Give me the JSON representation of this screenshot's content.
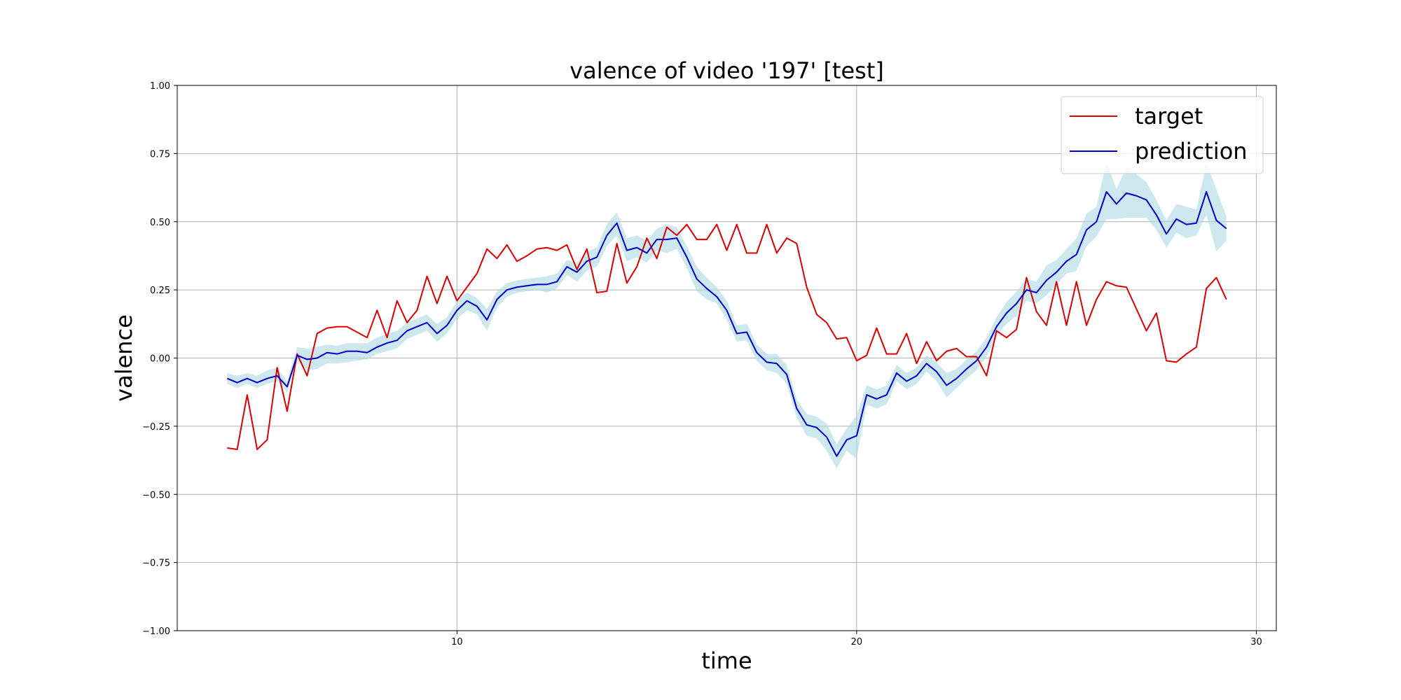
{
  "chart_data": {
    "type": "line",
    "title": "valence of video '197' [test]",
    "xlabel": "time",
    "ylabel": "valence",
    "xlim": [
      3.0,
      30.5
    ],
    "ylim": [
      -1.0,
      1.0
    ],
    "xticks": [
      10,
      20,
      30
    ],
    "yticks": [
      -1.0,
      -0.75,
      -0.5,
      -0.25,
      0.0,
      0.25,
      0.5,
      0.75,
      1.0
    ],
    "ytick_labels": [
      "−1.00",
      "−0.75",
      "−0.50",
      "−0.25",
      "0.00",
      "0.25",
      "0.50",
      "0.75",
      "1.00"
    ],
    "xtick_labels": [
      "10",
      "20",
      "30"
    ],
    "grid": true,
    "legend_position": "top-right",
    "colors": {
      "target": "#dd0000",
      "prediction": "#0000cc",
      "band": "#add8e6"
    },
    "series": [
      {
        "name": "target",
        "x": [
          4.25,
          4.5,
          4.75,
          5.0,
          5.25,
          5.5,
          5.75,
          6.0,
          6.25,
          6.5,
          6.75,
          7.0,
          7.25,
          7.5,
          7.75,
          8.0,
          8.25,
          8.5,
          8.75,
          9.0,
          9.25,
          9.5,
          9.75,
          10.0,
          10.25,
          10.5,
          10.75,
          11.0,
          11.25,
          11.5,
          11.75,
          12.0,
          12.25,
          12.5,
          12.75,
          13.0,
          13.25,
          13.5,
          13.75,
          14.0,
          14.25,
          14.5,
          14.75,
          15.0,
          15.25,
          15.5,
          15.75,
          16.0,
          16.25,
          16.5,
          16.75,
          17.0,
          17.25,
          17.5,
          17.75,
          18.0,
          18.25,
          18.5,
          18.75,
          19.0,
          19.25,
          19.5,
          19.75,
          20.0,
          20.25,
          20.5,
          20.75,
          21.0,
          21.25,
          21.5,
          21.75,
          22.0,
          22.25,
          22.5,
          22.75,
          23.0,
          23.25,
          23.5,
          23.75,
          24.0,
          24.25,
          24.5,
          24.75,
          25.0,
          25.25,
          25.5,
          25.75,
          26.0,
          26.25,
          26.5,
          26.75,
          27.0,
          27.25,
          27.5,
          27.75,
          28.0,
          28.25,
          28.5,
          28.75,
          29.0,
          29.25
        ],
        "values": [
          -0.33,
          -0.335,
          -0.135,
          -0.335,
          -0.3,
          -0.035,
          -0.195,
          0.015,
          -0.065,
          0.09,
          0.11,
          0.115,
          0.115,
          0.095,
          0.075,
          0.175,
          0.075,
          0.21,
          0.13,
          0.175,
          0.3,
          0.2,
          0.3,
          0.21,
          0.26,
          0.31,
          0.4,
          0.365,
          0.415,
          0.355,
          0.375,
          0.4,
          0.405,
          0.395,
          0.415,
          0.325,
          0.4,
          0.24,
          0.245,
          0.42,
          0.275,
          0.335,
          0.44,
          0.365,
          0.48,
          0.45,
          0.49,
          0.435,
          0.435,
          0.49,
          0.395,
          0.49,
          0.385,
          0.385,
          0.49,
          0.385,
          0.44,
          0.42,
          0.26,
          0.16,
          0.13,
          0.07,
          0.075,
          -0.01,
          0.01,
          0.11,
          0.015,
          0.015,
          0.09,
          -0.02,
          0.06,
          -0.01,
          0.025,
          0.035,
          0.005,
          0.005,
          -0.065,
          0.1,
          0.075,
          0.105,
          0.295,
          0.17,
          0.12,
          0.28,
          0.12,
          0.28,
          0.12,
          0.215,
          0.28,
          0.265,
          0.26,
          0.18,
          0.1,
          0.165,
          -0.01,
          -0.015,
          0.015,
          0.04,
          0.255,
          0.295,
          0.215
        ]
      },
      {
        "name": "prediction",
        "x": [
          4.25,
          4.5,
          4.75,
          5.0,
          5.25,
          5.5,
          5.75,
          6.0,
          6.25,
          6.5,
          6.75,
          7.0,
          7.25,
          7.5,
          7.75,
          8.0,
          8.25,
          8.5,
          8.75,
          9.0,
          9.25,
          9.5,
          9.75,
          10.0,
          10.25,
          10.5,
          10.75,
          11.0,
          11.25,
          11.5,
          11.75,
          12.0,
          12.25,
          12.5,
          12.75,
          13.0,
          13.25,
          13.5,
          13.75,
          14.0,
          14.25,
          14.5,
          14.75,
          15.0,
          15.25,
          15.5,
          15.75,
          16.0,
          16.25,
          16.5,
          16.75,
          17.0,
          17.25,
          17.5,
          17.75,
          18.0,
          18.25,
          18.5,
          18.75,
          19.0,
          19.25,
          19.5,
          19.75,
          20.0,
          20.25,
          20.5,
          20.75,
          21.0,
          21.25,
          21.5,
          21.75,
          22.0,
          22.25,
          22.5,
          22.75,
          23.0,
          23.25,
          23.5,
          23.75,
          24.0,
          24.25,
          24.5,
          24.75,
          25.0,
          25.25,
          25.5,
          25.75,
          26.0,
          26.25,
          26.5,
          26.75,
          27.0,
          27.25,
          27.5,
          27.75,
          28.0,
          28.25,
          28.5,
          28.75,
          29.0,
          29.25
        ],
        "values": [
          -0.075,
          -0.09,
          -0.075,
          -0.09,
          -0.075,
          -0.065,
          -0.105,
          0.01,
          -0.005,
          0.0,
          0.02,
          0.015,
          0.025,
          0.025,
          0.02,
          0.04,
          0.055,
          0.065,
          0.1,
          0.115,
          0.13,
          0.09,
          0.12,
          0.175,
          0.21,
          0.19,
          0.14,
          0.215,
          0.25,
          0.26,
          0.265,
          0.27,
          0.27,
          0.28,
          0.335,
          0.315,
          0.355,
          0.37,
          0.45,
          0.495,
          0.395,
          0.405,
          0.385,
          0.435,
          0.435,
          0.44,
          0.37,
          0.29,
          0.255,
          0.225,
          0.175,
          0.09,
          0.095,
          0.02,
          -0.015,
          -0.02,
          -0.06,
          -0.185,
          -0.245,
          -0.255,
          -0.29,
          -0.36,
          -0.3,
          -0.285,
          -0.135,
          -0.15,
          -0.135,
          -0.055,
          -0.085,
          -0.065,
          -0.02,
          -0.05,
          -0.1,
          -0.075,
          -0.04,
          -0.01,
          0.04,
          0.115,
          0.165,
          0.2,
          0.25,
          0.24,
          0.285,
          0.315,
          0.355,
          0.38,
          0.47,
          0.5,
          0.61,
          0.565,
          0.605,
          0.595,
          0.58,
          0.525,
          0.455,
          0.51,
          0.49,
          0.495,
          0.61,
          0.505,
          0.475
        ],
        "band_lower": [
          -0.095,
          -0.11,
          -0.095,
          -0.11,
          -0.095,
          -0.085,
          -0.125,
          -0.01,
          -0.045,
          -0.04,
          -0.02,
          -0.02,
          -0.015,
          -0.01,
          -0.005,
          0.015,
          0.025,
          0.035,
          0.07,
          0.085,
          0.1,
          0.06,
          0.09,
          0.145,
          0.175,
          0.16,
          0.1,
          0.185,
          0.225,
          0.24,
          0.245,
          0.25,
          0.24,
          0.255,
          0.305,
          0.28,
          0.32,
          0.335,
          0.41,
          0.45,
          0.355,
          0.37,
          0.35,
          0.395,
          0.385,
          0.4,
          0.33,
          0.245,
          0.215,
          0.2,
          0.14,
          0.06,
          0.065,
          -0.01,
          -0.045,
          -0.055,
          -0.095,
          -0.22,
          -0.285,
          -0.295,
          -0.34,
          -0.405,
          -0.34,
          -0.37,
          -0.17,
          -0.185,
          -0.17,
          -0.085,
          -0.115,
          -0.095,
          -0.05,
          -0.085,
          -0.145,
          -0.11,
          -0.075,
          -0.045,
          0.005,
          0.08,
          0.125,
          0.155,
          0.21,
          0.2,
          0.23,
          0.27,
          0.31,
          0.32,
          0.41,
          0.445,
          0.51,
          0.51,
          0.515,
          0.515,
          0.515,
          0.47,
          0.405,
          0.46,
          0.44,
          0.45,
          0.525,
          0.39,
          0.43
        ],
        "band_upper": [
          -0.055,
          -0.065,
          -0.055,
          -0.065,
          -0.045,
          -0.035,
          -0.085,
          0.04,
          0.035,
          0.04,
          0.05,
          0.045,
          0.055,
          0.055,
          0.055,
          0.075,
          0.09,
          0.1,
          0.13,
          0.145,
          0.16,
          0.125,
          0.15,
          0.21,
          0.24,
          0.22,
          0.18,
          0.245,
          0.275,
          0.285,
          0.29,
          0.295,
          0.3,
          0.31,
          0.36,
          0.35,
          0.39,
          0.405,
          0.49,
          0.535,
          0.44,
          0.45,
          0.43,
          0.475,
          0.49,
          0.48,
          0.41,
          0.335,
          0.295,
          0.26,
          0.21,
          0.12,
          0.125,
          0.05,
          0.015,
          0.015,
          -0.025,
          -0.15,
          -0.205,
          -0.215,
          -0.24,
          -0.315,
          -0.26,
          -0.21,
          -0.1,
          -0.115,
          -0.1,
          -0.025,
          -0.055,
          -0.035,
          0.01,
          -0.015,
          -0.055,
          -0.04,
          -0.005,
          0.025,
          0.075,
          0.15,
          0.205,
          0.245,
          0.29,
          0.28,
          0.34,
          0.36,
          0.4,
          0.44,
          0.53,
          0.555,
          0.72,
          0.62,
          0.7,
          0.675,
          0.645,
          0.58,
          0.505,
          0.565,
          0.555,
          0.545,
          0.715,
          0.62,
          0.52
        ]
      }
    ]
  }
}
